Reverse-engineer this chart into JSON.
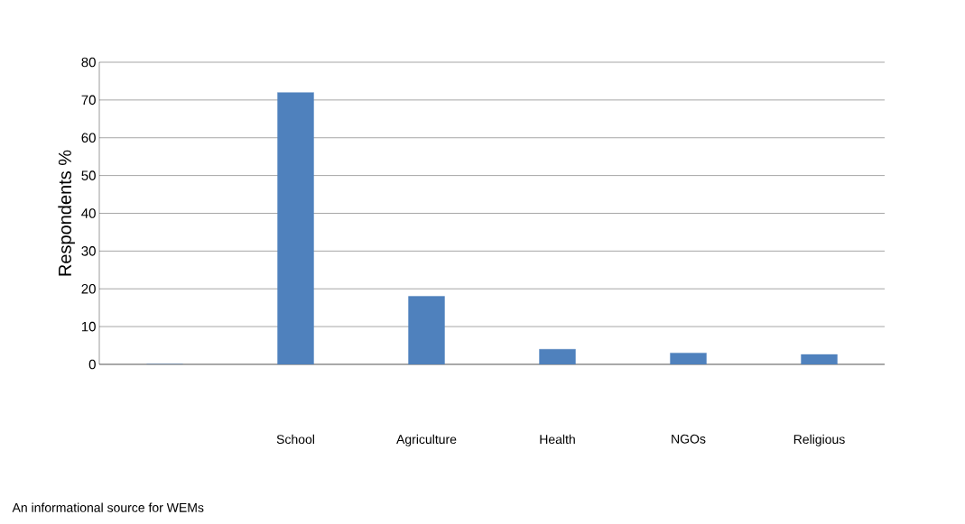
{
  "chart_data": {
    "type": "bar",
    "xlabel": "An informational  source  for WEMs",
    "ylabel": "Respondents %",
    "categories": [
      null,
      "School",
      "Agriculture",
      "Health",
      "NGOs",
      "Religious"
    ],
    "values": [
      0,
      72,
      18,
      4,
      3,
      2.6
    ],
    "color": "#4f81bd",
    "ylim": [
      0,
      80
    ],
    "yticks": [
      0,
      10,
      20,
      30,
      40,
      50,
      60,
      70,
      80
    ],
    "grid": "y"
  }
}
